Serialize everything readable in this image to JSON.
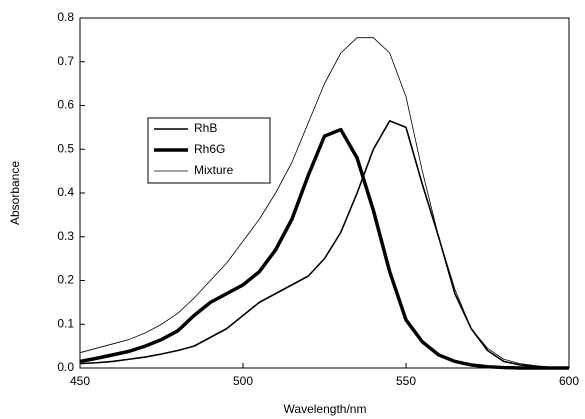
{
  "chart_data": {
    "type": "line",
    "x_label": "Wavelength/nm",
    "y_label": "Absorbance",
    "x": [
      450,
      455,
      460,
      465,
      470,
      475,
      480,
      485,
      490,
      495,
      500,
      505,
      510,
      515,
      520,
      525,
      530,
      535,
      540,
      545,
      550,
      555,
      560,
      565,
      570,
      575,
      580,
      585,
      590,
      595,
      600
    ],
    "series": [
      {
        "name": "RhB",
        "color": "#000000",
        "width": 1.6,
        "values": [
          0.01,
          0.012,
          0.015,
          0.02,
          0.025,
          0.032,
          0.04,
          0.05,
          0.07,
          0.09,
          0.12,
          0.15,
          0.17,
          0.19,
          0.21,
          0.25,
          0.31,
          0.4,
          0.5,
          0.565,
          0.55,
          0.42,
          0.3,
          0.17,
          0.09,
          0.04,
          0.015,
          0.007,
          0.003,
          0.001,
          0
        ]
      },
      {
        "name": "Rh6G",
        "color": "#000000",
        "width": 3.5,
        "values": [
          0.015,
          0.022,
          0.03,
          0.038,
          0.05,
          0.065,
          0.085,
          0.12,
          0.15,
          0.17,
          0.19,
          0.22,
          0.27,
          0.34,
          0.44,
          0.53,
          0.545,
          0.48,
          0.36,
          0.22,
          0.11,
          0.06,
          0.03,
          0.015,
          0.007,
          0.003,
          0.001,
          0,
          0,
          0,
          0
        ]
      },
      {
        "name": "Mixture",
        "color": "#000000",
        "width": 0.8,
        "values": [
          0.035,
          0.045,
          0.055,
          0.065,
          0.08,
          0.1,
          0.125,
          0.16,
          0.2,
          0.24,
          0.29,
          0.34,
          0.4,
          0.47,
          0.56,
          0.65,
          0.72,
          0.755,
          0.755,
          0.72,
          0.62,
          0.45,
          0.3,
          0.18,
          0.09,
          0.045,
          0.02,
          0.01,
          0.005,
          0.002,
          0
        ]
      }
    ],
    "xlim": [
      450,
      600
    ],
    "xticks": [
      450,
      500,
      550,
      600
    ],
    "ylim": [
      0,
      0.8
    ],
    "yticks": [
      {
        "value": 0,
        "label": "0.0"
      },
      0.1,
      0.2,
      0.3,
      0.4,
      0.5,
      0.6,
      0.7,
      0.8
    ],
    "grid": false
  }
}
